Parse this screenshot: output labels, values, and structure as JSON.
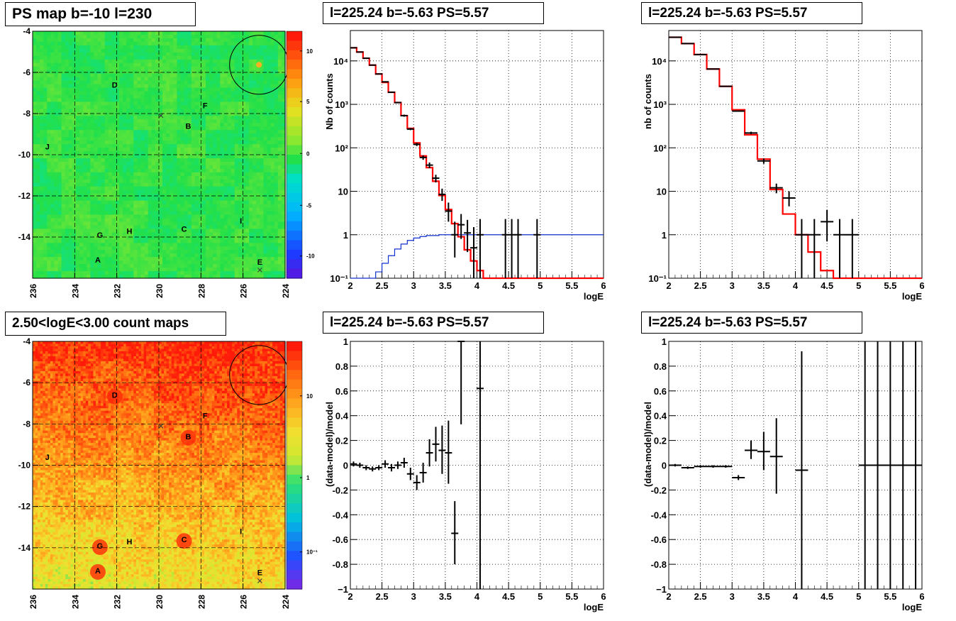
{
  "panels": {
    "map_top_title": "PS map b=-10 l=230",
    "map_bottom_title": "2.50<logE<3.00 count maps",
    "spec_left_title": "l=225.24 b=-5.63 PS=5.57",
    "spec_right_title": "l=225.24 b=-5.63 PS=5.57",
    "res_left_title": "l=225.24 b=-5.63 PS=5.57",
    "res_right_title": "l=225.24 b=-5.63 PS=5.57"
  },
  "chart_data": [
    {
      "id": "ps_map",
      "type": "heatmap",
      "title": "PS map b=-10 l=230",
      "x_ticks": [
        "236",
        "234",
        "232",
        "230",
        "228",
        "226",
        "224"
      ],
      "y_ticks": [
        "-4",
        "-6",
        "-8",
        "-10",
        "-12",
        "-14"
      ],
      "colorbar_ticks": [
        "10",
        "5",
        "0",
        "-5",
        "-10"
      ],
      "xlim": [
        236,
        224
      ],
      "ylim": [
        -16,
        -4
      ],
      "zlim": [
        -12,
        12
      ],
      "sources": [
        {
          "label": "D",
          "l": 232.1,
          "b": -6.6
        },
        {
          "label": "F",
          "l": 227.8,
          "b": -7.6
        },
        {
          "label": "B",
          "l": 228.6,
          "b": -8.6
        },
        {
          "label": "J",
          "l": 235.3,
          "b": -9.6
        },
        {
          "label": "I",
          "l": 226.1,
          "b": -13.2
        },
        {
          "label": "G",
          "l": 232.8,
          "b": -13.9
        },
        {
          "label": "H",
          "l": 231.4,
          "b": -13.7
        },
        {
          "label": "C",
          "l": 228.8,
          "b": -13.6
        },
        {
          "label": "A",
          "l": 232.9,
          "b": -15.1
        },
        {
          "label": "E",
          "l": 225.2,
          "b": -15.2
        }
      ],
      "circle": {
        "l": 225.24,
        "b": -5.63,
        "r": 0.7
      },
      "colors": {
        "background": "#22e04a"
      }
    },
    {
      "id": "count_map",
      "type": "heatmap",
      "title": "2.50<logE<3.00 count maps",
      "x_ticks": [
        "236",
        "234",
        "232",
        "230",
        "228",
        "226",
        "224"
      ],
      "y_ticks": [
        "-4",
        "-6",
        "-8",
        "-10",
        "-12",
        "-14"
      ],
      "colorbar_ticks": [
        "10",
        "1",
        "10⁻¹"
      ],
      "xlim": [
        236,
        224
      ],
      "ylim": [
        -16,
        -4
      ],
      "sources": [
        {
          "label": "D",
          "l": 232.1,
          "b": -6.6
        },
        {
          "label": "F",
          "l": 227.8,
          "b": -7.6
        },
        {
          "label": "B",
          "l": 228.6,
          "b": -8.6
        },
        {
          "label": "J",
          "l": 235.3,
          "b": -9.6
        },
        {
          "label": "I",
          "l": 226.1,
          "b": -13.2
        },
        {
          "label": "G",
          "l": 232.8,
          "b": -13.9
        },
        {
          "label": "H",
          "l": 231.4,
          "b": -13.7
        },
        {
          "label": "C",
          "l": 228.8,
          "b": -13.6
        },
        {
          "label": "A",
          "l": 232.9,
          "b": -15.1
        },
        {
          "label": "E",
          "l": 225.2,
          "b": -15.2
        }
      ],
      "circle": {
        "l": 225.24,
        "b": -5.63,
        "r": 0.7
      }
    },
    {
      "id": "spec_left",
      "type": "line",
      "title": "l=225.24 b=-5.63 PS=5.57",
      "xlabel": "logE",
      "ylabel": "Nb of counts",
      "xlim": [
        2,
        6
      ],
      "ylim": [
        0.1,
        50000
      ],
      "log_y": true,
      "x_ticks": [
        "2",
        "2.5",
        "3",
        "3.5",
        "4",
        "4.5",
        "5",
        "5.5",
        "6"
      ],
      "y_ticks": [
        "10⁴",
        "10³",
        "10²",
        "10",
        "1",
        "10⁻¹"
      ],
      "model_red": [
        {
          "x0": 2.0,
          "x1": 2.1,
          "y": 20000
        },
        {
          "x0": 2.1,
          "x1": 2.2,
          "y": 16000
        },
        {
          "x0": 2.2,
          "x1": 2.3,
          "y": 11500
        },
        {
          "x0": 2.3,
          "x1": 2.4,
          "y": 8000
        },
        {
          "x0": 2.4,
          "x1": 2.5,
          "y": 5000
        },
        {
          "x0": 2.5,
          "x1": 2.6,
          "y": 3200
        },
        {
          "x0": 2.6,
          "x1": 2.7,
          "y": 1900
        },
        {
          "x0": 2.7,
          "x1": 2.8,
          "y": 1100
        },
        {
          "x0": 2.8,
          "x1": 2.9,
          "y": 550
        },
        {
          "x0": 2.9,
          "x1": 3.0,
          "y": 280
        },
        {
          "x0": 3.0,
          "x1": 3.1,
          "y": 130
        },
        {
          "x0": 3.1,
          "x1": 3.2,
          "y": 65
        },
        {
          "x0": 3.2,
          "x1": 3.3,
          "y": 35
        },
        {
          "x0": 3.3,
          "x1": 3.4,
          "y": 17
        },
        {
          "x0": 3.4,
          "x1": 3.5,
          "y": 8
        },
        {
          "x0": 3.5,
          "x1": 3.6,
          "y": 3.8
        },
        {
          "x0": 3.6,
          "x1": 3.7,
          "y": 1.8
        },
        {
          "x0": 3.7,
          "x1": 3.8,
          "y": 0.9
        },
        {
          "x0": 3.8,
          "x1": 3.9,
          "y": 0.45
        },
        {
          "x0": 3.9,
          "x1": 4.0,
          "y": 0.25
        },
        {
          "x0": 4.0,
          "x1": 4.1,
          "y": 0.15
        },
        {
          "x0": 4.1,
          "x1": 6.0,
          "y": 0.1
        }
      ],
      "model_blue": [
        {
          "x0": 2.0,
          "x1": 2.4,
          "y": 0.1
        },
        {
          "x0": 2.4,
          "x1": 2.5,
          "y": 0.14
        },
        {
          "x0": 2.5,
          "x1": 2.6,
          "y": 0.22
        },
        {
          "x0": 2.6,
          "x1": 2.7,
          "y": 0.33
        },
        {
          "x0": 2.7,
          "x1": 2.8,
          "y": 0.47
        },
        {
          "x0": 2.8,
          "x1": 2.9,
          "y": 0.61
        },
        {
          "x0": 2.9,
          "x1": 3.0,
          "y": 0.74
        },
        {
          "x0": 3.0,
          "x1": 3.1,
          "y": 0.84
        },
        {
          "x0": 3.1,
          "x1": 3.2,
          "y": 0.91
        },
        {
          "x0": 3.2,
          "x1": 3.4,
          "y": 0.96
        },
        {
          "x0": 3.4,
          "x1": 6.0,
          "y": 1.0
        }
      ],
      "points": [
        {
          "x": 2.05,
          "y": 20000,
          "lo": 19800,
          "hi": 20200
        },
        {
          "x": 2.15,
          "y": 16000,
          "lo": 15800,
          "hi": 16200
        },
        {
          "x": 2.25,
          "y": 11500,
          "lo": 11300,
          "hi": 11700
        },
        {
          "x": 2.35,
          "y": 8000,
          "lo": 7900,
          "hi": 8100
        },
        {
          "x": 2.45,
          "y": 5000,
          "lo": 4900,
          "hi": 5100
        },
        {
          "x": 2.55,
          "y": 3300,
          "lo": 3200,
          "hi": 3400
        },
        {
          "x": 2.65,
          "y": 1900,
          "lo": 1850,
          "hi": 1950
        },
        {
          "x": 2.75,
          "y": 1100,
          "lo": 1060,
          "hi": 1140
        },
        {
          "x": 2.85,
          "y": 550,
          "lo": 520,
          "hi": 580
        },
        {
          "x": 2.95,
          "y": 270,
          "lo": 255,
          "hi": 285
        },
        {
          "x": 3.05,
          "y": 120,
          "lo": 110,
          "hi": 130
        },
        {
          "x": 3.15,
          "y": 60,
          "lo": 53,
          "hi": 67
        },
        {
          "x": 3.25,
          "y": 40,
          "lo": 34,
          "hi": 46
        },
        {
          "x": 3.35,
          "y": 20,
          "lo": 16,
          "hi": 24
        },
        {
          "x": 3.45,
          "y": 8.5,
          "lo": 6,
          "hi": 11.5
        },
        {
          "x": 3.55,
          "y": 3.5,
          "lo": 2,
          "hi": 5.5
        },
        {
          "x": 3.65,
          "y": 1,
          "lo": 0.3,
          "hi": 2
        },
        {
          "x": 3.75,
          "y": 1.7,
          "lo": 0.8,
          "hi": 3
        },
        {
          "x": 3.85,
          "y": 1.1,
          "lo": 0.4,
          "hi": 2.2
        },
        {
          "x": 3.95,
          "y": 0.5,
          "lo": 0.1,
          "hi": 1.5
        },
        {
          "x": 4.05,
          "y": 1,
          "lo": 0.1,
          "hi": 2.3
        },
        {
          "x": 4.45,
          "y": 1,
          "lo": 0.1,
          "hi": 2.3
        },
        {
          "x": 4.55,
          "y": 1,
          "lo": 0.1,
          "hi": 2.3
        },
        {
          "x": 4.65,
          "y": 1,
          "lo": 0.1,
          "hi": 2.3
        },
        {
          "x": 4.95,
          "y": 1,
          "lo": 0.1,
          "hi": 2.3
        }
      ]
    },
    {
      "id": "spec_right",
      "type": "line",
      "title": "l=225.24 b=-5.63 PS=5.57",
      "xlabel": "logE",
      "ylabel": "nb of counts",
      "xlim": [
        2,
        6
      ],
      "ylim": [
        0.1,
        50000
      ],
      "log_y": true,
      "x_ticks": [
        "2",
        "2.5",
        "3",
        "3.5",
        "4",
        "4.5",
        "5",
        "5.5",
        "6"
      ],
      "y_ticks": [
        "10⁴",
        "10³",
        "10²",
        "10",
        "1",
        "10⁻¹"
      ],
      "model_red": [
        {
          "x0": 2.0,
          "x1": 2.2,
          "y": 35000
        },
        {
          "x0": 2.2,
          "x1": 2.4,
          "y": 25000
        },
        {
          "x0": 2.4,
          "x1": 2.6,
          "y": 14000
        },
        {
          "x0": 2.6,
          "x1": 2.8,
          "y": 6500
        },
        {
          "x0": 2.8,
          "x1": 3.0,
          "y": 2600
        },
        {
          "x0": 3.0,
          "x1": 3.2,
          "y": 750
        },
        {
          "x0": 3.2,
          "x1": 3.4,
          "y": 200
        },
        {
          "x0": 3.4,
          "x1": 3.6,
          "y": 55
        },
        {
          "x0": 3.6,
          "x1": 3.8,
          "y": 11
        },
        {
          "x0": 3.8,
          "x1": 4.0,
          "y": 3
        },
        {
          "x0": 4.0,
          "x1": 4.2,
          "y": 1
        },
        {
          "x0": 4.2,
          "x1": 4.4,
          "y": 0.4
        },
        {
          "x0": 4.4,
          "x1": 4.6,
          "y": 0.15
        },
        {
          "x0": 4.6,
          "x1": 6.0,
          "y": 0.1
        }
      ],
      "points": [
        {
          "x": 2.1,
          "y": 35000,
          "lo": 34700,
          "hi": 35300
        },
        {
          "x": 2.3,
          "y": 25000,
          "lo": 24700,
          "hi": 25300
        },
        {
          "x": 2.5,
          "y": 14000,
          "lo": 13800,
          "hi": 14200
        },
        {
          "x": 2.7,
          "y": 6500,
          "lo": 6400,
          "hi": 6600
        },
        {
          "x": 2.9,
          "y": 2600,
          "lo": 2550,
          "hi": 2650
        },
        {
          "x": 3.1,
          "y": 700,
          "lo": 680,
          "hi": 720
        },
        {
          "x": 3.3,
          "y": 220,
          "lo": 205,
          "hi": 235
        },
        {
          "x": 3.5,
          "y": 50,
          "lo": 43,
          "hi": 57
        },
        {
          "x": 3.7,
          "y": 12,
          "lo": 9,
          "hi": 15
        },
        {
          "x": 3.9,
          "y": 7,
          "lo": 4.5,
          "hi": 10
        },
        {
          "x": 4.1,
          "y": 1,
          "lo": 0.1,
          "hi": 2.3
        },
        {
          "x": 4.3,
          "y": 1,
          "lo": 0.1,
          "hi": 2.3
        },
        {
          "x": 4.5,
          "y": 2,
          "lo": 0.7,
          "hi": 3.7
        },
        {
          "x": 4.7,
          "y": 1,
          "lo": 0.1,
          "hi": 2.3
        },
        {
          "x": 4.9,
          "y": 1,
          "lo": 0.1,
          "hi": 2.3
        }
      ]
    },
    {
      "id": "res_left",
      "type": "scatter",
      "title": "l=225.24 b=-5.63 PS=5.57",
      "xlabel": "logE",
      "ylabel": "(data-model)/model",
      "xlim": [
        2,
        6
      ],
      "ylim": [
        -1,
        1
      ],
      "x_ticks": [
        "2",
        "2.5",
        "3",
        "3.5",
        "4",
        "4.5",
        "5",
        "5.5",
        "6"
      ],
      "y_ticks": [
        "1",
        "0.8",
        "0.6",
        "0.4",
        "0.2",
        "0",
        "-0.2",
        "-0.4",
        "-0.6",
        "-0.8",
        "−1"
      ],
      "points": [
        {
          "x": 2.05,
          "y": 0.01,
          "lo": -0.01,
          "hi": 0.03
        },
        {
          "x": 2.15,
          "y": 0.0,
          "lo": -0.02,
          "hi": 0.02
        },
        {
          "x": 2.25,
          "y": -0.02,
          "lo": -0.04,
          "hi": 0.0
        },
        {
          "x": 2.35,
          "y": -0.03,
          "lo": -0.05,
          "hi": -0.01
        },
        {
          "x": 2.45,
          "y": -0.02,
          "lo": -0.04,
          "hi": 0.0
        },
        {
          "x": 2.55,
          "y": 0.01,
          "lo": -0.02,
          "hi": 0.04
        },
        {
          "x": 2.65,
          "y": -0.02,
          "lo": -0.05,
          "hi": 0.01
        },
        {
          "x": 2.75,
          "y": 0.0,
          "lo": -0.03,
          "hi": 0.03
        },
        {
          "x": 2.85,
          "y": 0.02,
          "lo": -0.02,
          "hi": 0.06
        },
        {
          "x": 2.95,
          "y": -0.07,
          "lo": -0.12,
          "hi": -0.02
        },
        {
          "x": 3.05,
          "y": -0.14,
          "lo": -0.2,
          "hi": -0.08
        },
        {
          "x": 3.15,
          "y": -0.06,
          "lo": -0.14,
          "hi": 0.02
        },
        {
          "x": 3.25,
          "y": 0.1,
          "lo": -0.01,
          "hi": 0.21
        },
        {
          "x": 3.35,
          "y": 0.17,
          "lo": 0.03,
          "hi": 0.31
        },
        {
          "x": 3.45,
          "y": 0.12,
          "lo": -0.07,
          "hi": 0.32
        },
        {
          "x": 3.55,
          "y": 0.1,
          "lo": -0.15,
          "hi": 0.36
        },
        {
          "x": 3.65,
          "y": -0.55,
          "lo": -0.8,
          "hi": -0.29
        },
        {
          "x": 3.75,
          "y": 1.0,
          "lo": 0.33,
          "hi": 1.0
        },
        {
          "x": 4.05,
          "y": 0.62,
          "lo": -1.0,
          "hi": 1.0
        }
      ]
    },
    {
      "id": "res_right",
      "type": "scatter",
      "title": "l=225.24 b=-5.63 PS=5.57",
      "xlabel": "logE",
      "ylabel": "(data-model)/model",
      "xlim": [
        2,
        6
      ],
      "ylim": [
        -1,
        1
      ],
      "x_ticks": [
        "2",
        "2.5",
        "3",
        "3.5",
        "4",
        "4.5",
        "5",
        "5.5",
        "6"
      ],
      "y_ticks": [
        "1",
        "0.8",
        "0.6",
        "0.4",
        "0.2",
        "0",
        "-0.2",
        "-0.4",
        "-0.6",
        "-0.8",
        "−1"
      ],
      "points": [
        {
          "x": 2.1,
          "y": 0.0,
          "lo": -0.01,
          "hi": 0.01
        },
        {
          "x": 2.3,
          "y": -0.02,
          "lo": -0.03,
          "hi": -0.01
        },
        {
          "x": 2.5,
          "y": -0.01,
          "lo": -0.02,
          "hi": 0.0
        },
        {
          "x": 2.7,
          "y": -0.01,
          "lo": -0.02,
          "hi": 0.0
        },
        {
          "x": 2.9,
          "y": -0.01,
          "lo": -0.02,
          "hi": 0.0
        },
        {
          "x": 3.1,
          "y": -0.1,
          "lo": -0.12,
          "hi": -0.08
        },
        {
          "x": 3.3,
          "y": 0.12,
          "lo": 0.05,
          "hi": 0.2
        },
        {
          "x": 3.5,
          "y": 0.11,
          "lo": -0.04,
          "hi": 0.27
        },
        {
          "x": 3.7,
          "y": 0.07,
          "lo": -0.23,
          "hi": 0.38
        },
        {
          "x": 4.1,
          "y": -0.04,
          "lo": -1.0,
          "hi": 0.92
        },
        {
          "x": 5.1,
          "y": 0,
          "lo": -1.0,
          "hi": 1.0
        },
        {
          "x": 5.3,
          "y": 0,
          "lo": -1.0,
          "hi": 1.0
        },
        {
          "x": 5.5,
          "y": 0,
          "lo": -1.0,
          "hi": 1.0
        },
        {
          "x": 5.7,
          "y": 0,
          "lo": -1.0,
          "hi": 1.0
        },
        {
          "x": 5.9,
          "y": 0,
          "lo": -1.0,
          "hi": 1.0
        }
      ]
    }
  ]
}
